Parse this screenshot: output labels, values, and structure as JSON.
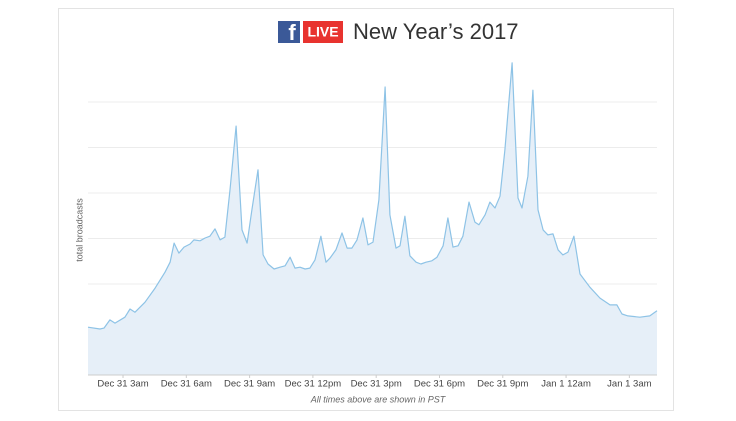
{
  "chart_data": {
    "type": "area",
    "logo": "f",
    "badge": "LIVE",
    "title": "New Year’s 2017",
    "y_label": "total broadcasts",
    "note": "All times above are shown in PST",
    "line_color": "#8ec3e6",
    "fill_color": "#e6eff8",
    "grid": true,
    "xlim": [
      1.34,
      28.31
    ],
    "ylim": [
      0,
      7
    ],
    "yticks": [
      1,
      2,
      3,
      4,
      5,
      6
    ],
    "xticks": [
      {
        "value": 3,
        "label": "Dec 31 3am"
      },
      {
        "value": 6,
        "label": "Dec 31 6am"
      },
      {
        "value": 9,
        "label": "Dec 31 9am"
      },
      {
        "value": 12,
        "label": "Dec 31 12pm"
      },
      {
        "value": 15,
        "label": "Dec 31 3pm"
      },
      {
        "value": 18,
        "label": "Dec 31 6pm"
      },
      {
        "value": 21,
        "label": "Dec 31 9pm"
      },
      {
        "value": 24,
        "label": "Jan 1 12am"
      },
      {
        "value": 27,
        "label": "Jan 1 3am"
      }
    ],
    "x": [
      1.34,
      1.91,
      2.1,
      2.38,
      2.62,
      3.09,
      3.33,
      3.57,
      4.04,
      4.52,
      4.99,
      5.23,
      5.42,
      5.65,
      5.89,
      6.18,
      6.36,
      6.65,
      6.89,
      7.12,
      7.36,
      7.6,
      7.83,
      8.07,
      8.36,
      8.64,
      8.88,
      9.11,
      9.4,
      9.64,
      9.87,
      10.16,
      10.44,
      10.68,
      10.92,
      11.15,
      11.39,
      11.63,
      11.86,
      12.1,
      12.38,
      12.62,
      12.81,
      13.09,
      13.38,
      13.62,
      13.85,
      14.09,
      14.37,
      14.61,
      14.85,
      15.13,
      15.42,
      15.65,
      15.94,
      16.13,
      16.36,
      16.6,
      16.89,
      17.12,
      17.36,
      17.64,
      17.88,
      18.17,
      18.4,
      18.64,
      18.88,
      19.11,
      19.4,
      19.68,
      19.87,
      20.16,
      20.39,
      20.63,
      20.87,
      21.1,
      21.44,
      21.72,
      21.91,
      22.19,
      22.43,
      22.67,
      22.91,
      23.14,
      23.38,
      23.62,
      23.85,
      24.09,
      24.37,
      24.66,
      25.13,
      25.61,
      26.08,
      26.41,
      26.65,
      26.93,
      27.5,
      27.97,
      28.31
    ],
    "values": [
      1.05,
      1.01,
      1.03,
      1.21,
      1.14,
      1.27,
      1.45,
      1.38,
      1.6,
      1.91,
      2.26,
      2.48,
      2.9,
      2.68,
      2.81,
      2.88,
      2.97,
      2.95,
      3.01,
      3.05,
      3.21,
      2.97,
      3.03,
      4.07,
      5.47,
      3.19,
      2.9,
      3.63,
      4.51,
      2.64,
      2.44,
      2.33,
      2.37,
      2.4,
      2.59,
      2.35,
      2.37,
      2.33,
      2.35,
      2.53,
      3.05,
      2.48,
      2.57,
      2.75,
      3.12,
      2.79,
      2.79,
      2.97,
      3.45,
      2.86,
      2.92,
      3.85,
      6.33,
      3.52,
      2.79,
      2.84,
      3.49,
      2.62,
      2.48,
      2.44,
      2.48,
      2.51,
      2.59,
      2.84,
      3.45,
      2.81,
      2.84,
      3.05,
      3.8,
      3.36,
      3.3,
      3.52,
      3.8,
      3.67,
      3.93,
      4.95,
      6.86,
      3.89,
      3.67,
      4.37,
      6.26,
      3.63,
      3.19,
      3.08,
      3.1,
      2.75,
      2.64,
      2.7,
      3.05,
      2.22,
      1.93,
      1.69,
      1.54,
      1.54,
      1.34,
      1.3,
      1.27,
      1.3,
      1.41
    ]
  }
}
